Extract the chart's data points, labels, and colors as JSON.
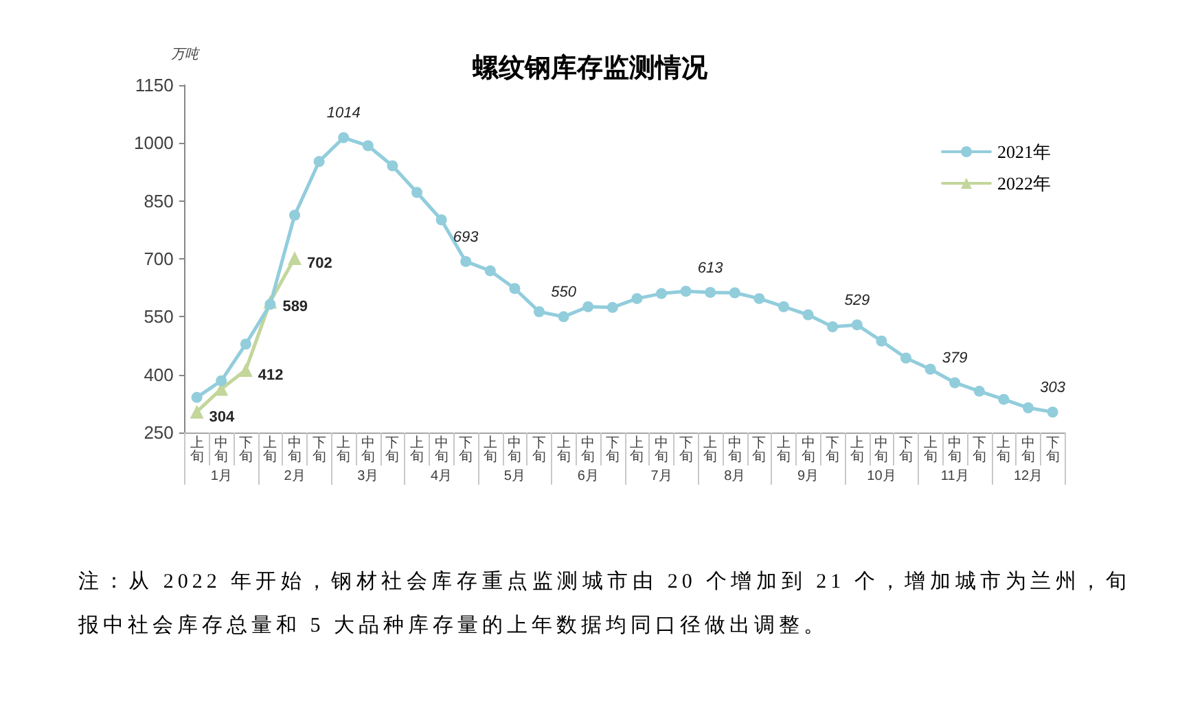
{
  "chart_data": {
    "type": "line",
    "title": "螺纹钢库存监测情况",
    "ylabel": "万吨",
    "categories": [
      "上旬",
      "中旬",
      "下旬",
      "上旬",
      "中旬",
      "下旬",
      "上旬",
      "中旬",
      "下旬",
      "上旬",
      "中旬",
      "下旬",
      "上旬",
      "中旬",
      "下旬",
      "上旬",
      "中旬",
      "下旬",
      "上旬",
      "中旬",
      "下旬",
      "上旬",
      "中旬",
      "下旬",
      "上旬",
      "中旬",
      "下旬",
      "上旬",
      "中旬",
      "下旬",
      "上旬",
      "中旬",
      "下旬",
      "上旬",
      "中旬",
      "下旬"
    ],
    "series": [
      {
        "name": "2021年",
        "color": "#92cddc",
        "marker": "circle",
        "values": [
          341,
          384,
          479,
          582,
          813,
          952,
          1014,
          993,
          941,
          872,
          801,
          693,
          669,
          623,
          563,
          550,
          576,
          574,
          597,
          610,
          616,
          613,
          612,
          597,
          576,
          555,
          524,
          529,
          487,
          443,
          414,
          379,
          357,
          336,
          314,
          303
        ],
        "value_labels": [
          null,
          null,
          null,
          null,
          null,
          null,
          "1014",
          null,
          null,
          null,
          null,
          "693",
          null,
          null,
          null,
          "550",
          null,
          null,
          null,
          null,
          null,
          "613",
          null,
          null,
          null,
          null,
          null,
          "529",
          null,
          null,
          null,
          "379",
          null,
          null,
          null,
          "303"
        ]
      },
      {
        "name": "2022年",
        "color": "#c3d69b",
        "marker": "triangle",
        "values": [
          304,
          363,
          412,
          589,
          702,
          null,
          null,
          null,
          null,
          null,
          null,
          null,
          null,
          null,
          null,
          null,
          null,
          null,
          null,
          null,
          null,
          null,
          null,
          null,
          null,
          null,
          null,
          null,
          null,
          null,
          null,
          null,
          null,
          null,
          null,
          null
        ],
        "value_labels": [
          "304",
          null,
          "412",
          "589",
          "702",
          null,
          null,
          null,
          null,
          null,
          null,
          null,
          null,
          null,
          null,
          null,
          null,
          null,
          null,
          null,
          null,
          null,
          null,
          null,
          null,
          null,
          null,
          null,
          null,
          null,
          null,
          null,
          null,
          null,
          null,
          null
        ]
      }
    ],
    "ylim": [
      250,
      1150
    ],
    "yticks": [
      250,
      400,
      550,
      700,
      850,
      1000,
      1150
    ],
    "legend": "top right",
    "line_style": "solid",
    "annotations": [
      "1月",
      "2月",
      "3月",
      "4月",
      "5月",
      "6月",
      "7月",
      "8月",
      "9月",
      "10月",
      "11月",
      "12月",
      "注：从 2022 年开始，钢材社会库存重点监测城市由 20 个增加到 21 个，增加城市为兰州，旬报中社会库存总量和 5 大品种库存量的上年数据均同口径做出调整。"
    ]
  }
}
